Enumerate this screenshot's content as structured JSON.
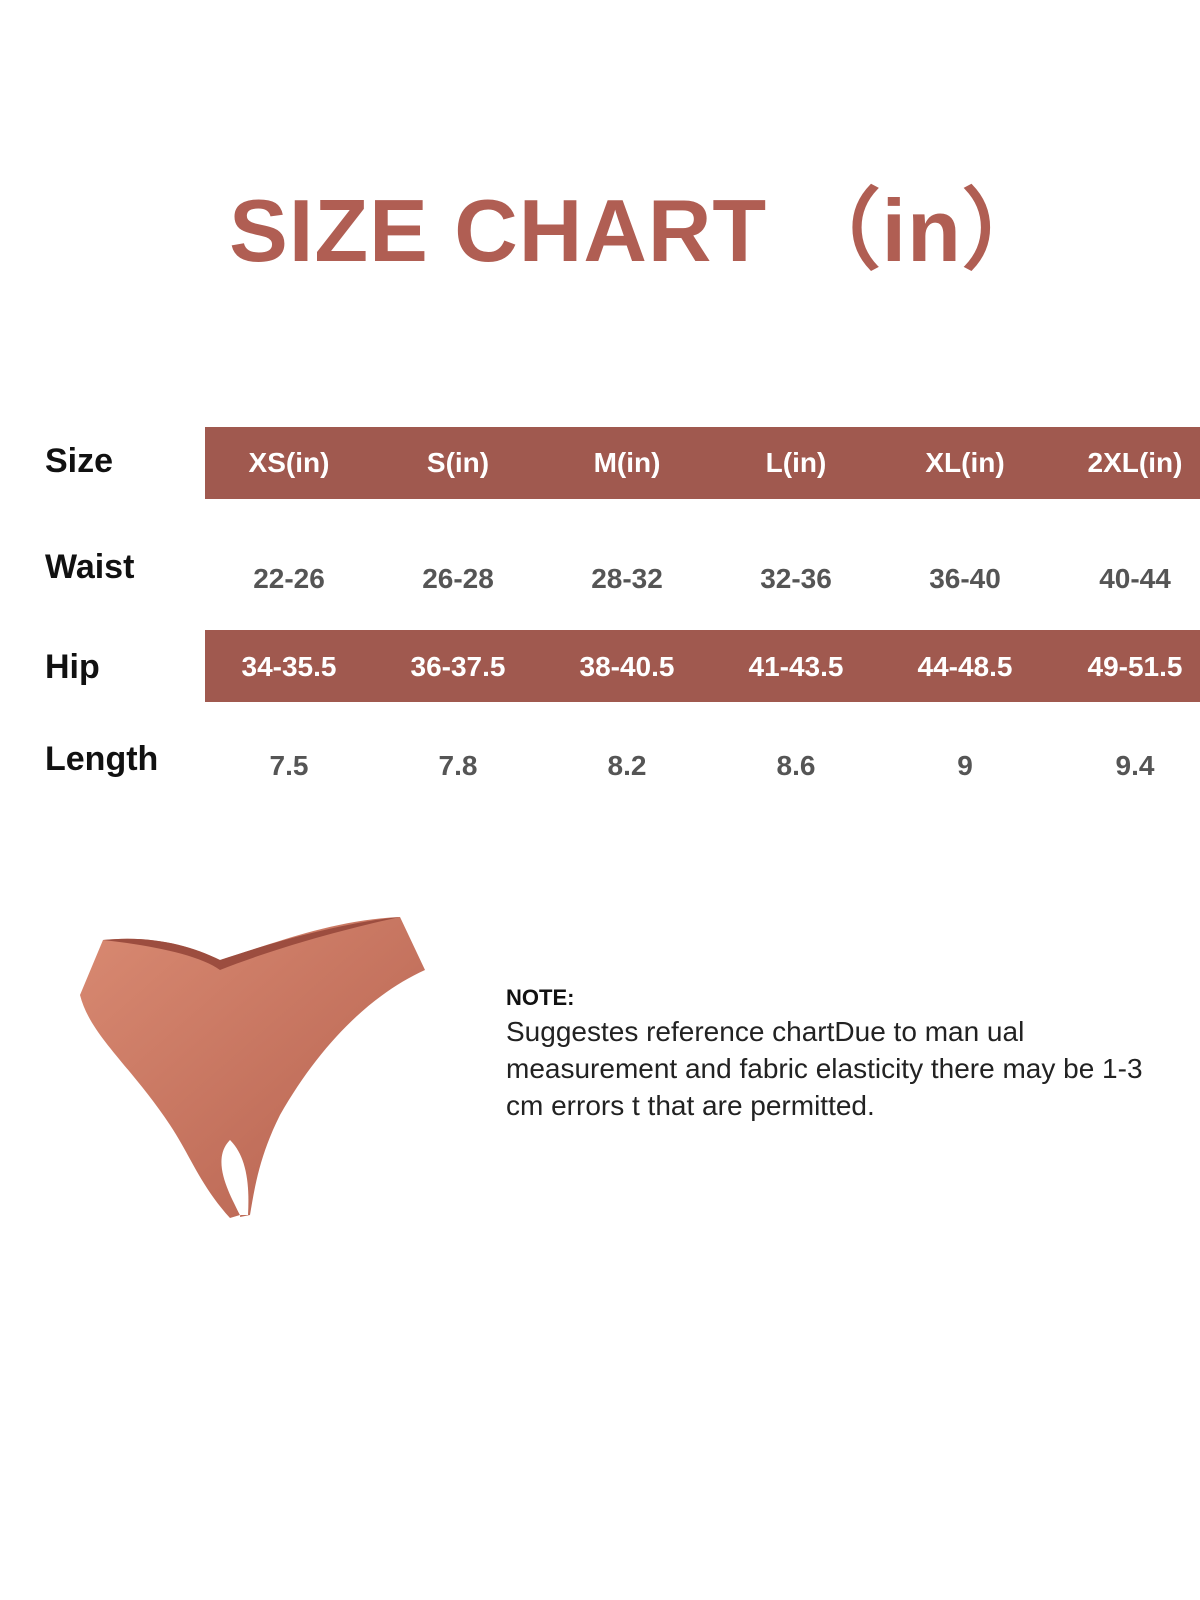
{
  "title": "SIZE CHART （in）",
  "colors": {
    "accent": "#a0594f",
    "title": "#b05e53",
    "garment": "#c7735f"
  },
  "chart_data": {
    "type": "table",
    "title": "SIZE CHART （in）",
    "row_labels": [
      "Size",
      "Waist",
      "Hip",
      "Length"
    ],
    "columns": [
      "XS(in)",
      "S(in)",
      "M(in)",
      "L(in)",
      "XL(in)",
      "2XL(in)"
    ],
    "rows": {
      "waist": [
        "22-26",
        "26-28",
        "28-32",
        "32-36",
        "36-40",
        "40-44"
      ],
      "hip": [
        "34-35.5",
        "36-37.5",
        "38-40.5",
        "41-43.5",
        "44-48.5",
        "49-51.5"
      ],
      "length": [
        "7.5",
        "7.8",
        "8.2",
        "8.6",
        "9",
        "9.4"
      ]
    }
  },
  "note": {
    "heading": "NOTE:",
    "text": "Suggestes reference chartDue to man ual measurement and fabric elasticity there may be 1-3 cm errors t that are permitted."
  },
  "image": {
    "icon": "thong-underwear-product-image"
  }
}
